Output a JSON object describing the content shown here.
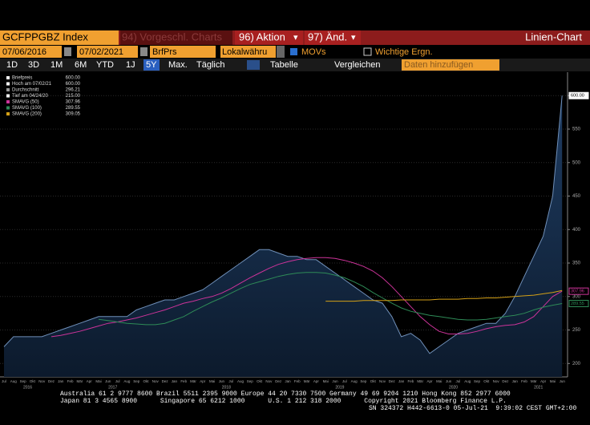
{
  "toolbar": {
    "ticker": "GCFPPGBZ Index",
    "menu1": "94) Vorgeschl. Charts",
    "menu2": "96) Aktion",
    "menu3": "97) Änd.",
    "view": "Linien-Chart"
  },
  "range": {
    "start": "07/06/2016",
    "end": "07/02/2021",
    "field": "BrfPrs",
    "currency": "Lokalwähru",
    "movs": "MOVs",
    "events": "Wichtige Ergn."
  },
  "periods": [
    "1D",
    "3D",
    "1M",
    "6M",
    "YTD",
    "1J",
    "5Y",
    "Max.",
    "Täglich"
  ],
  "tabs": {
    "table": "Tabelle",
    "compare": "Vergleichen",
    "add": "Daten hinzufügen"
  },
  "chart_data": {
    "type": "area",
    "categories": [
      "Jul",
      "Aug",
      "Sep",
      "Okt",
      "Nov",
      "Dez",
      "Jan",
      "Feb",
      "Mär",
      "Apr",
      "Mai",
      "Jun",
      "Jul",
      "Aug",
      "Sep",
      "Okt",
      "Nov",
      "Dez",
      "Jan",
      "Feb",
      "Mär",
      "Apr",
      "Mai",
      "Jun",
      "Jul",
      "Aug",
      "Sep",
      "Okt",
      "Nov",
      "Dez",
      "Jan",
      "Feb",
      "Mär",
      "Apr",
      "Mai",
      "Jun",
      "Jul",
      "Aug",
      "Sep",
      "Okt",
      "Nov",
      "Dez",
      "Jan",
      "Feb",
      "Mär",
      "Apr",
      "Mai",
      "Jun",
      "Jul",
      "Aug",
      "Sep",
      "Okt",
      "Nov",
      "Dez",
      "Jan",
      "Feb",
      "Mär",
      "Apr",
      "Mai",
      "Jun"
    ],
    "years": [
      "2016",
      "2017",
      "2018",
      "2019",
      "2020",
      "2021"
    ],
    "series": [
      {
        "name": "Briefpreis",
        "color": "#1f3d63",
        "last": {
          "value": 600,
          "label": "600.00"
        },
        "values": [
          225,
          240,
          240,
          240,
          240,
          245,
          250,
          255,
          260,
          265,
          270,
          270,
          270,
          270,
          280,
          285,
          290,
          295,
          295,
          300,
          305,
          310,
          320,
          330,
          340,
          350,
          360,
          370,
          370,
          365,
          360,
          360,
          355,
          355,
          345,
          335,
          325,
          315,
          305,
          295,
          290,
          270,
          240,
          245,
          235,
          215,
          225,
          235,
          245,
          250,
          255,
          260,
          260,
          275,
          300,
          330,
          360,
          390,
          450,
          600
        ]
      },
      {
        "name": "SMAVG (50)",
        "color": "#cc3399",
        "last": {
          "value": 307.96,
          "label": "307.96"
        },
        "values": [
          null,
          null,
          null,
          null,
          null,
          240,
          242,
          245,
          248,
          252,
          256,
          260,
          262,
          265,
          268,
          272,
          276,
          280,
          285,
          290,
          293,
          297,
          300,
          305,
          312,
          320,
          328,
          335,
          342,
          348,
          352,
          355,
          357,
          358,
          358,
          357,
          354,
          350,
          345,
          338,
          328,
          315,
          300,
          285,
          270,
          258,
          248,
          244,
          244,
          245,
          248,
          252,
          255,
          257,
          258,
          262,
          270,
          285,
          300,
          307.96
        ]
      },
      {
        "name": "SMAVG (100)",
        "color": "#2e8b57",
        "last": {
          "value": 289.55,
          "label": "289.55"
        },
        "values": [
          null,
          null,
          null,
          null,
          null,
          null,
          null,
          null,
          null,
          null,
          266,
          264,
          262,
          260,
          259,
          258,
          258,
          260,
          265,
          270,
          278,
          285,
          292,
          298,
          305,
          312,
          318,
          322,
          326,
          330,
          333,
          335,
          336,
          336,
          335,
          332,
          328,
          322,
          315,
          306,
          298,
          290,
          283,
          278,
          275,
          272,
          270,
          268,
          266,
          265,
          265,
          266,
          268,
          270,
          272,
          275,
          280,
          284,
          287,
          289.55
        ]
      },
      {
        "name": "SMAVG (200)",
        "color": "#d4a017",
        "last": {
          "value": 309.05,
          "label": "309.05"
        },
        "values": [
          null,
          null,
          null,
          null,
          null,
          null,
          null,
          null,
          null,
          null,
          null,
          null,
          null,
          null,
          null,
          null,
          null,
          null,
          null,
          null,
          null,
          null,
          null,
          null,
          null,
          null,
          null,
          null,
          null,
          null,
          null,
          null,
          null,
          null,
          293,
          293,
          293,
          293,
          294,
          294,
          294,
          294,
          295,
          295,
          295,
          295,
          296,
          296,
          296,
          297,
          297,
          298,
          298,
          299,
          300,
          301,
          302,
          304,
          306,
          309.05
        ]
      }
    ],
    "stats": [
      {
        "name": "Hoch am 07/02/21",
        "value": 600,
        "label": "600.00"
      },
      {
        "name": "Durchschnitt",
        "value": 296.21,
        "label": "296.21"
      },
      {
        "name": "Tief am 04/24/20",
        "value": 215,
        "label": "215.00"
      }
    ],
    "ylim": [
      180,
      635
    ],
    "yticks": [
      200,
      250,
      300,
      350,
      400,
      450,
      500,
      550,
      600
    ],
    "grid": true
  },
  "footer": [
    "Australia 61 2 9777 8600 Brazil 5511 2395 9000 Europe 44 20 7330 7500 Germany 49 69 9204 1210 Hong Kong 852 2977 6000",
    "Japan 81 3 4565 8900      Singapore 65 6212 1000      U.S. 1 212 318 2000      Copyright 2021 Bloomberg Finance L.P.",
    "SN 324372 H442-6613-0 05-Jul-21  9:39:02 CEST GMT+2:00"
  ]
}
